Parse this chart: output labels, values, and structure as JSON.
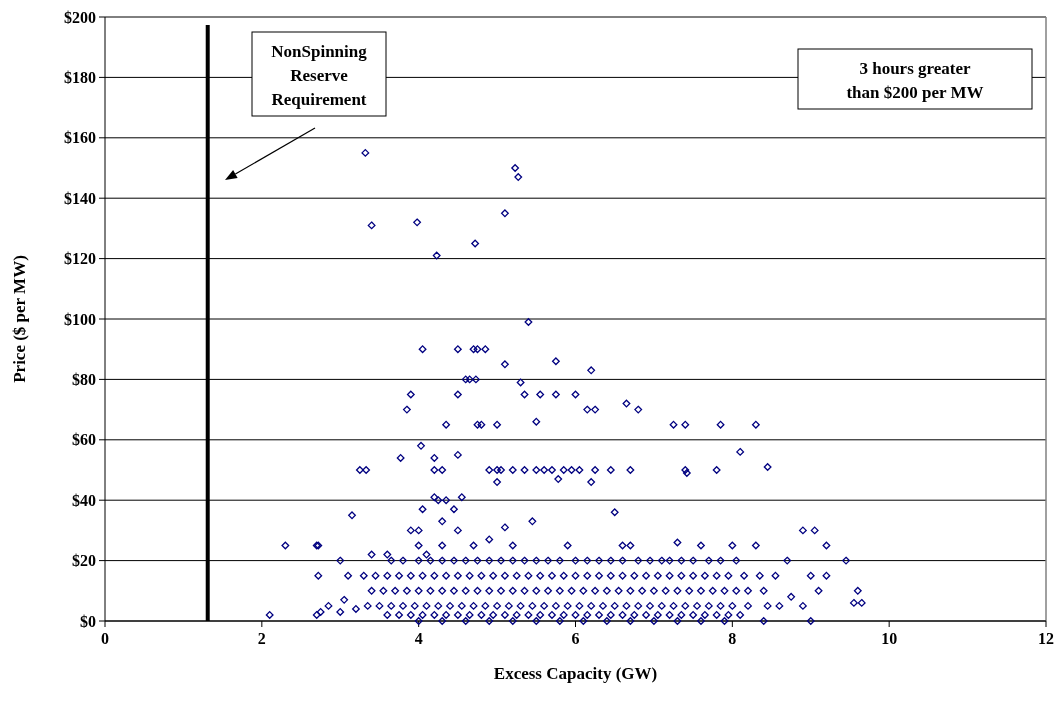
{
  "chart_data": {
    "type": "scatter",
    "xlabel": "Excess Capacity (GW)",
    "ylabel": "Price ($ per MW)",
    "xlim": [
      0,
      12
    ],
    "xticks": [
      0,
      2,
      4,
      6,
      8,
      10,
      12
    ],
    "ylim": [
      0,
      200
    ],
    "yticks": [
      {
        "value": 0,
        "label": "$0"
      },
      {
        "value": 20,
        "label": "$20"
      },
      {
        "value": 40,
        "label": "$40"
      },
      {
        "value": 60,
        "label": "$60"
      },
      {
        "value": 80,
        "label": "$80"
      },
      {
        "value": 100,
        "label": "$100"
      },
      {
        "value": 120,
        "label": "$120"
      },
      {
        "value": 140,
        "label": "$140"
      },
      {
        "value": 160,
        "label": "$160"
      },
      {
        "value": 180,
        "label": "$180"
      },
      {
        "value": 200,
        "label": "$200"
      }
    ],
    "grid": "y",
    "marker": "diamond",
    "ref_lines": [
      {
        "axis": "x",
        "value": 1.31,
        "color": "#000000"
      }
    ],
    "annotations": [
      "NonSpinning\nReserve\nRequirement",
      "3 hours greater\nthan $200 per MW"
    ],
    "series": [
      {
        "color": "#000080",
        "x": [
          3.32,
          3.4,
          3.98,
          4.23,
          4.72,
          5.1,
          5.23,
          5.27,
          5.4,
          4.05,
          4.5,
          4.7,
          4.75,
          4.85,
          5.1,
          5.75,
          6.2,
          6.65,
          6.8,
          7.25,
          7.4,
          7.85,
          8.3,
          8.1,
          8.45,
          3.9,
          4.5,
          4.35,
          4.75,
          4.8,
          5.0,
          5.35,
          5.3,
          5.55,
          5.75,
          6.0,
          6.15,
          6.25,
          3.85,
          3.77,
          4.03,
          4.2,
          4.2,
          4.3,
          4.5,
          4.6,
          4.65,
          4.73
        ],
        "values": [
          155,
          131,
          132,
          121,
          125,
          135,
          150,
          147,
          99,
          90,
          90,
          90,
          90,
          90,
          85,
          86,
          83,
          72,
          70,
          65,
          65,
          65,
          65,
          56,
          51,
          75,
          75,
          65,
          65,
          65,
          65,
          75,
          79,
          75,
          75,
          75,
          70,
          70,
          70,
          54,
          58,
          54,
          50,
          50,
          55,
          80,
          80,
          80
        ]
      },
      {
        "color": "#000080",
        "x": [
          3.25,
          3.33,
          4.9,
          5.0,
          5.05,
          5.2,
          5.35,
          5.5,
          5.6,
          5.7,
          5.85,
          5.95,
          6.05,
          6.25,
          6.45,
          6.7,
          7.4,
          7.42,
          7.8,
          5.0,
          5.78,
          6.2,
          6.5,
          5.5,
          4.55,
          4.2,
          4.25,
          4.35,
          4.45,
          3.15,
          3.9,
          4.0,
          4.05,
          4.3,
          5.1,
          5.45
        ],
        "values": [
          50,
          50,
          50,
          50,
          50,
          50,
          50,
          50,
          50,
          50,
          50,
          50,
          50,
          50,
          50,
          50,
          50,
          49,
          50,
          46,
          47,
          46,
          36,
          66,
          41,
          41,
          40,
          40,
          37,
          35,
          30,
          30,
          37,
          33,
          31,
          33
        ]
      },
      {
        "color": "#000080",
        "x": [
          2.3,
          2.7,
          2.72,
          2.72,
          3.0,
          3.1,
          3.4,
          3.6,
          4.0,
          4.1,
          4.3,
          4.5,
          4.7,
          4.9,
          5.2,
          5.9,
          6.6,
          6.7,
          7.3,
          7.6,
          8.0,
          8.3,
          8.9,
          9.05,
          9.2,
          9.45,
          8.7,
          9.0,
          9.2,
          9.1,
          9.6,
          9.55,
          9.65,
          8.6,
          8.4,
          9.0,
          8.9,
          8.75,
          2.1,
          2.7,
          2.85,
          3.0,
          3.2,
          3.05,
          2.75
        ],
        "values": [
          25,
          25,
          25,
          15,
          20,
          15,
          22,
          22,
          25,
          22,
          25,
          30,
          25,
          27,
          25,
          25,
          25,
          25,
          26,
          25,
          25,
          25,
          30,
          30,
          25,
          20,
          20,
          15,
          15,
          10,
          10,
          6,
          6,
          5,
          0,
          0,
          5,
          8,
          2,
          2,
          5,
          3,
          4,
          7,
          3
        ]
      },
      {
        "color": "#000080",
        "x": [
          3.65,
          3.8,
          4.0,
          4.15,
          4.3,
          4.45,
          4.6,
          4.75,
          4.9,
          5.05,
          5.2,
          5.35,
          5.5,
          5.65,
          5.8,
          6.0,
          6.15,
          6.3,
          6.45,
          6.6,
          6.8,
          6.95,
          7.1,
          7.2,
          7.35,
          7.5,
          7.7,
          7.85,
          8.05
        ],
        "values": [
          20,
          20,
          20,
          20,
          20,
          20,
          20,
          20,
          20,
          20,
          20,
          20,
          20,
          20,
          20,
          20,
          20,
          20,
          20,
          20,
          20,
          20,
          20,
          20,
          20,
          20,
          20,
          20,
          20
        ]
      },
      {
        "color": "#000080",
        "x": [
          3.3,
          3.45,
          3.6,
          3.75,
          3.9,
          4.05,
          4.2,
          4.35,
          4.5,
          4.65,
          4.8,
          4.95,
          5.1,
          5.25,
          5.4,
          5.55,
          5.7,
          5.85,
          6.0,
          6.15,
          6.3,
          6.45,
          6.6,
          6.75,
          6.9,
          7.05,
          7.2,
          7.35,
          7.5,
          7.65,
          7.8,
          7.95,
          8.15,
          8.35,
          8.55
        ],
        "values": [
          15,
          15,
          15,
          15,
          15,
          15,
          15,
          15,
          15,
          15,
          15,
          15,
          15,
          15,
          15,
          15,
          15,
          15,
          15,
          15,
          15,
          15,
          15,
          15,
          15,
          15,
          15,
          15,
          15,
          15,
          15,
          15,
          15,
          15,
          15
        ]
      },
      {
        "color": "#000080",
        "x": [
          3.4,
          3.55,
          3.7,
          3.85,
          4.0,
          4.15,
          4.3,
          4.45,
          4.6,
          4.75,
          4.9,
          5.05,
          5.2,
          5.35,
          5.5,
          5.65,
          5.8,
          5.95,
          6.1,
          6.25,
          6.4,
          6.55,
          6.7,
          6.85,
          7.0,
          7.15,
          7.3,
          7.45,
          7.6,
          7.75,
          7.9,
          8.05,
          8.2,
          8.4
        ],
        "values": [
          10,
          10,
          10,
          10,
          10,
          10,
          10,
          10,
          10,
          10,
          10,
          10,
          10,
          10,
          10,
          10,
          10,
          10,
          10,
          10,
          10,
          10,
          10,
          10,
          10,
          10,
          10,
          10,
          10,
          10,
          10,
          10,
          10,
          10
        ]
      },
      {
        "color": "#000080",
        "x": [
          3.35,
          3.5,
          3.65,
          3.8,
          3.95,
          4.1,
          4.25,
          4.4,
          4.55,
          4.7,
          4.85,
          5.0,
          5.15,
          5.3,
          5.45,
          5.6,
          5.75,
          5.9,
          6.05,
          6.2,
          6.35,
          6.5,
          6.65,
          6.8,
          6.95,
          7.1,
          7.25,
          7.4,
          7.55,
          7.7,
          7.85,
          8.0,
          8.2,
          8.45
        ],
        "values": [
          5,
          5,
          5,
          5,
          5,
          5,
          5,
          5,
          5,
          5,
          5,
          5,
          5,
          5,
          5,
          5,
          5,
          5,
          5,
          5,
          5,
          5,
          5,
          5,
          5,
          5,
          5,
          5,
          5,
          5,
          5,
          5,
          5,
          5
        ]
      },
      {
        "color": "#000080",
        "x": [
          3.6,
          3.75,
          3.9,
          4.05,
          4.2,
          4.35,
          4.5,
          4.65,
          4.8,
          4.95,
          5.1,
          5.25,
          5.4,
          5.55,
          5.7,
          5.85,
          6.0,
          6.15,
          6.3,
          6.45,
          6.6,
          6.75,
          6.9,
          7.05,
          7.2,
          7.35,
          7.5,
          7.65,
          7.8,
          7.95,
          8.1
        ],
        "values": [
          2,
          2,
          2,
          2,
          2,
          2,
          2,
          2,
          2,
          2,
          2,
          2,
          2,
          2,
          2,
          2,
          2,
          2,
          2,
          2,
          2,
          2,
          2,
          2,
          2,
          2,
          2,
          2,
          2,
          2,
          2
        ]
      },
      {
        "color": "#000080",
        "x": [
          4.0,
          4.3,
          4.6,
          4.9,
          5.2,
          5.5,
          5.8,
          6.1,
          6.4,
          6.7,
          7.0,
          7.3,
          7.6,
          7.9
        ],
        "values": [
          0,
          0,
          0,
          0,
          0,
          0,
          0,
          0,
          0,
          0,
          0,
          0,
          0,
          0
        ]
      }
    ]
  }
}
